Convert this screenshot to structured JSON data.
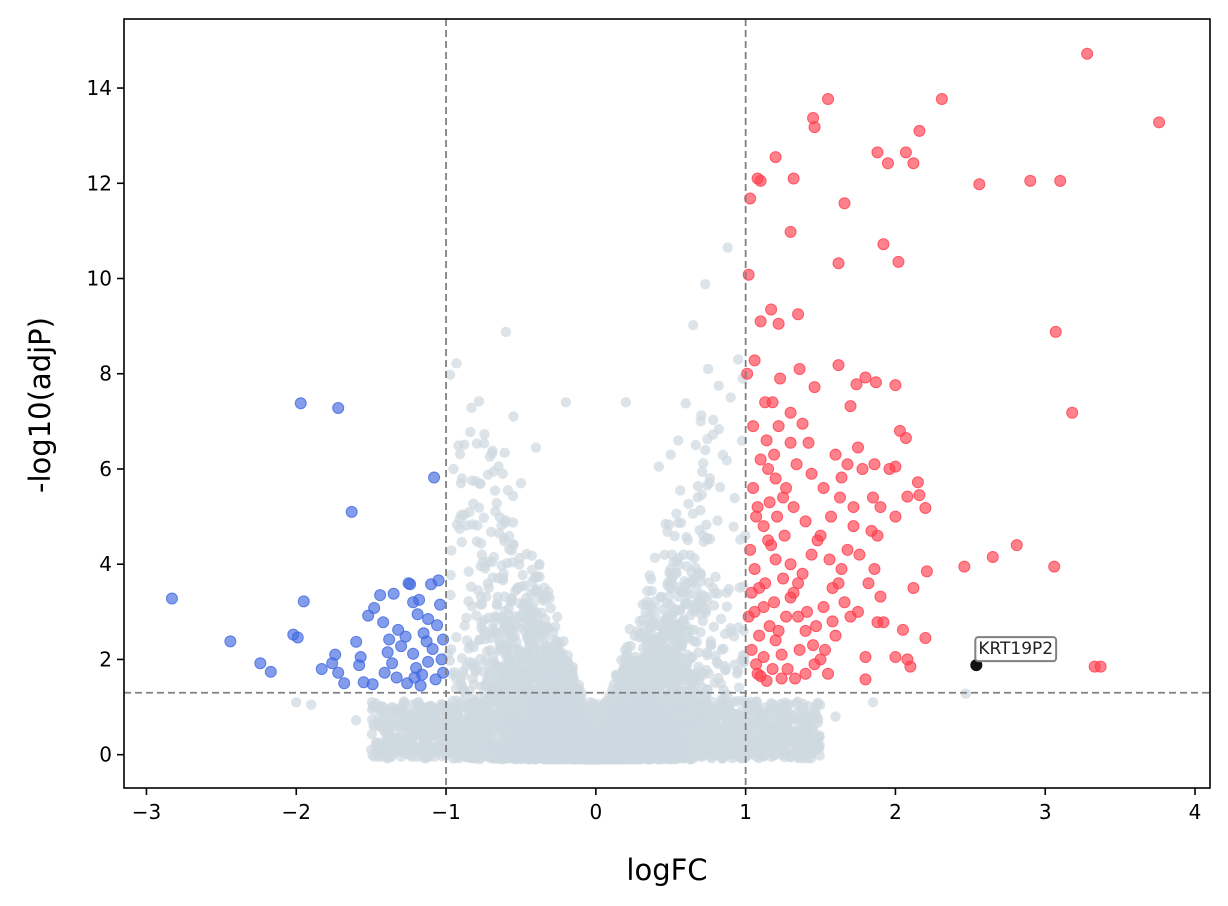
{
  "chart_data": {
    "type": "scatter",
    "title": "",
    "xlabel": "logFC",
    "ylabel": "-log10(adjP)",
    "xlim": [
      -3.15,
      4.1
    ],
    "ylim": [
      -0.7,
      15.45
    ],
    "x_ticks": [
      -3,
      -2,
      -1,
      0,
      1,
      2,
      3,
      4
    ],
    "x_tick_labels": [
      "−3",
      "−2",
      "−1",
      "0",
      "1",
      "2",
      "3",
      "4"
    ],
    "y_ticks": [
      0,
      2,
      4,
      6,
      8,
      10,
      12,
      14
    ],
    "y_tick_labels": [
      "0",
      "2",
      "4",
      "6",
      "8",
      "10",
      "12",
      "14"
    ],
    "thresholds": {
      "logfc": [
        -1,
        1
      ],
      "neg_log10_p": 1.3
    },
    "colors": {
      "down": "#4169e1",
      "up": "#ff3e4d",
      "ns": "#cfd8e0",
      "highlight": "#111111",
      "threshold_line": "#808080"
    },
    "series": [
      {
        "name": "down",
        "points": [
          [
            -2.83,
            3.28
          ],
          [
            -2.44,
            2.38
          ],
          [
            -2.24,
            1.92
          ],
          [
            -2.17,
            1.74
          ],
          [
            -2.02,
            2.52
          ],
          [
            -1.99,
            2.46
          ],
          [
            -1.95,
            3.22
          ],
          [
            -1.97,
            7.38
          ],
          [
            -1.72,
            7.28
          ],
          [
            -1.63,
            5.1
          ],
          [
            -1.83,
            1.8
          ],
          [
            -1.76,
            1.92
          ],
          [
            -1.74,
            2.1
          ],
          [
            -1.72,
            1.72
          ],
          [
            -1.68,
            1.5
          ],
          [
            -1.6,
            2.37
          ],
          [
            -1.58,
            1.88
          ],
          [
            -1.57,
            2.05
          ],
          [
            -1.55,
            1.52
          ],
          [
            -1.52,
            2.92
          ],
          [
            -1.48,
            3.08
          ],
          [
            -1.49,
            1.48
          ],
          [
            -1.44,
            3.35
          ],
          [
            -1.42,
            2.78
          ],
          [
            -1.39,
            2.15
          ],
          [
            -1.38,
            2.42
          ],
          [
            -1.36,
            1.92
          ],
          [
            -1.35,
            3.38
          ],
          [
            -1.33,
            1.62
          ],
          [
            -1.3,
            2.28
          ],
          [
            -1.27,
            2.48
          ],
          [
            -1.25,
            3.6
          ],
          [
            -1.24,
            3.58
          ],
          [
            -1.22,
            3.2
          ],
          [
            -1.22,
            2.12
          ],
          [
            -1.2,
            1.82
          ],
          [
            -1.19,
            2.95
          ],
          [
            -1.18,
            3.25
          ],
          [
            -1.16,
            1.68
          ],
          [
            -1.15,
            2.55
          ],
          [
            -1.13,
            2.38
          ],
          [
            -1.12,
            1.95
          ],
          [
            -1.1,
            3.58
          ],
          [
            -1.09,
            2.22
          ],
          [
            -1.08,
            5.82
          ],
          [
            -1.07,
            1.58
          ],
          [
            -1.05,
            3.66
          ],
          [
            -1.04,
            3.15
          ],
          [
            -1.03,
            2.0
          ],
          [
            -1.02,
            2.42
          ],
          [
            -1.02,
            1.72
          ],
          [
            -1.26,
            1.5
          ],
          [
            -1.32,
            2.62
          ],
          [
            -1.17,
            1.45
          ],
          [
            -1.06,
            2.72
          ],
          [
            -1.12,
            2.85
          ],
          [
            -1.41,
            1.72
          ],
          [
            -1.21,
            1.62
          ]
        ]
      },
      {
        "name": "up",
        "points": [
          [
            1.02,
            10.08
          ],
          [
            1.03,
            11.68
          ],
          [
            1.06,
            8.28
          ],
          [
            1.08,
            12.1
          ],
          [
            1.1,
            12.05
          ],
          [
            1.1,
            9.1
          ],
          [
            1.17,
            9.35
          ],
          [
            1.2,
            12.55
          ],
          [
            1.22,
            9.05
          ],
          [
            1.23,
            7.9
          ],
          [
            1.3,
            10.98
          ],
          [
            1.32,
            12.1
          ],
          [
            1.35,
            9.25
          ],
          [
            1.45,
            13.37
          ],
          [
            1.46,
            13.18
          ],
          [
            1.55,
            13.77
          ],
          [
            1.62,
            10.32
          ],
          [
            1.66,
            11.58
          ],
          [
            1.88,
            12.65
          ],
          [
            1.92,
            10.72
          ],
          [
            1.95,
            12.42
          ],
          [
            2.02,
            10.35
          ],
          [
            2.07,
            12.65
          ],
          [
            2.12,
            12.42
          ],
          [
            2.16,
            13.1
          ],
          [
            2.31,
            13.77
          ],
          [
            2.56,
            11.98
          ],
          [
            2.9,
            12.05
          ],
          [
            3.1,
            12.05
          ],
          [
            3.28,
            14.72
          ],
          [
            3.76,
            13.28
          ],
          [
            3.07,
            8.88
          ],
          [
            3.18,
            7.18
          ],
          [
            1.01,
            8.0
          ],
          [
            1.13,
            7.4
          ],
          [
            1.18,
            7.4
          ],
          [
            1.36,
            8.1
          ],
          [
            1.46,
            7.72
          ],
          [
            1.62,
            8.18
          ],
          [
            1.74,
            7.78
          ],
          [
            1.8,
            7.92
          ],
          [
            1.87,
            7.82
          ],
          [
            2.0,
            7.76
          ],
          [
            1.7,
            7.32
          ],
          [
            1.3,
            7.18
          ],
          [
            1.38,
            6.95
          ],
          [
            1.05,
            6.9
          ],
          [
            1.3,
            6.55
          ],
          [
            1.42,
            6.55
          ],
          [
            1.75,
            6.45
          ],
          [
            1.64,
            5.82
          ],
          [
            1.86,
            6.1
          ],
          [
            1.9,
            5.2
          ],
          [
            1.96,
            6.0
          ],
          [
            2.0,
            6.05
          ],
          [
            2.03,
            6.8
          ],
          [
            2.07,
            6.65
          ],
          [
            2.15,
            5.72
          ],
          [
            2.08,
            5.42
          ],
          [
            2.16,
            5.45
          ],
          [
            2.2,
            5.18
          ],
          [
            2.0,
            5.0
          ],
          [
            1.84,
            4.7
          ],
          [
            1.88,
            4.6
          ],
          [
            2.12,
            3.5
          ],
          [
            2.21,
            3.85
          ],
          [
            2.46,
            3.95
          ],
          [
            2.65,
            4.15
          ],
          [
            2.81,
            4.4
          ],
          [
            3.06,
            3.95
          ],
          [
            1.9,
            3.32
          ],
          [
            1.88,
            2.78
          ],
          [
            1.92,
            2.78
          ],
          [
            2.05,
            2.62
          ],
          [
            2.2,
            2.45
          ],
          [
            1.8,
            2.05
          ],
          [
            2.0,
            2.05
          ],
          [
            2.08,
            2.0
          ],
          [
            2.1,
            1.85
          ],
          [
            1.8,
            1.58
          ],
          [
            3.33,
            1.85
          ],
          [
            3.37,
            1.85
          ],
          [
            1.05,
            5.6
          ],
          [
            1.08,
            5.2
          ],
          [
            1.12,
            4.8
          ],
          [
            1.15,
            4.5
          ],
          [
            1.2,
            4.1
          ],
          [
            1.25,
            3.7
          ],
          [
            1.3,
            3.3
          ],
          [
            1.35,
            2.9
          ],
          [
            1.4,
            2.6
          ],
          [
            1.45,
            2.3
          ],
          [
            1.5,
            2.0
          ],
          [
            1.55,
            1.7
          ],
          [
            1.06,
            3.9
          ],
          [
            1.09,
            3.5
          ],
          [
            1.12,
            3.1
          ],
          [
            1.16,
            2.7
          ],
          [
            1.2,
            2.4
          ],
          [
            1.24,
            2.1
          ],
          [
            1.28,
            1.8
          ],
          [
            1.33,
            1.6
          ],
          [
            1.04,
            2.2
          ],
          [
            1.07,
            1.9
          ],
          [
            1.1,
            1.65
          ],
          [
            1.14,
            1.55
          ],
          [
            1.18,
            1.8
          ],
          [
            1.22,
            2.6
          ],
          [
            1.27,
            2.9
          ],
          [
            1.32,
            3.4
          ],
          [
            1.38,
            3.8
          ],
          [
            1.44,
            4.2
          ],
          [
            1.5,
            4.6
          ],
          [
            1.57,
            5.0
          ],
          [
            1.63,
            5.4
          ],
          [
            1.1,
            6.2
          ],
          [
            1.15,
            6.0
          ],
          [
            1.2,
            5.8
          ],
          [
            1.25,
            5.4
          ],
          [
            1.32,
            5.2
          ],
          [
            1.4,
            4.9
          ],
          [
            1.48,
            4.5
          ],
          [
            1.56,
            4.1
          ],
          [
            1.62,
            3.6
          ],
          [
            1.66,
            3.2
          ],
          [
            1.7,
            2.9
          ],
          [
            1.6,
            2.5
          ],
          [
            1.53,
            2.2
          ],
          [
            1.46,
            1.9
          ],
          [
            1.4,
            1.7
          ],
          [
            1.03,
            4.3
          ],
          [
            1.06,
            3.0
          ],
          [
            1.09,
            2.5
          ],
          [
            1.13,
            3.6
          ],
          [
            1.17,
            4.4
          ],
          [
            1.21,
            5.0
          ],
          [
            1.26,
            4.6
          ],
          [
            1.3,
            4.0
          ],
          [
            1.35,
            3.6
          ],
          [
            1.41,
            3.0
          ],
          [
            1.47,
            2.7
          ],
          [
            1.52,
            3.1
          ],
          [
            1.58,
            3.5
          ],
          [
            1.64,
            3.9
          ],
          [
            1.68,
            4.3
          ],
          [
            1.72,
            4.8
          ],
          [
            1.76,
            4.2
          ],
          [
            1.82,
            3.6
          ],
          [
            1.86,
            3.9
          ],
          [
            1.75,
            3.0
          ],
          [
            1.58,
            2.8
          ],
          [
            1.36,
            2.2
          ],
          [
            1.24,
            1.6
          ],
          [
            1.08,
            1.7
          ],
          [
            1.12,
            2.05
          ],
          [
            1.02,
            2.9
          ],
          [
            1.04,
            3.4
          ],
          [
            1.19,
            3.2
          ],
          [
            1.27,
            5.6
          ],
          [
            1.34,
            6.1
          ],
          [
            1.44,
            5.9
          ],
          [
            1.52,
            5.6
          ],
          [
            1.6,
            6.3
          ],
          [
            1.68,
            6.1
          ],
          [
            1.78,
            6.0
          ],
          [
            1.85,
            5.4
          ],
          [
            1.72,
            5.2
          ],
          [
            1.14,
            6.6
          ],
          [
            1.19,
            6.3
          ],
          [
            1.22,
            6.9
          ],
          [
            1.16,
            5.3
          ],
          [
            1.07,
            5.0
          ]
        ]
      },
      {
        "name": "highlight",
        "points": [
          [
            2.54,
            1.88
          ]
        ]
      }
    ],
    "annotations": [
      {
        "text": "KRT19P2",
        "x": 2.54,
        "y": 1.88
      }
    ]
  }
}
